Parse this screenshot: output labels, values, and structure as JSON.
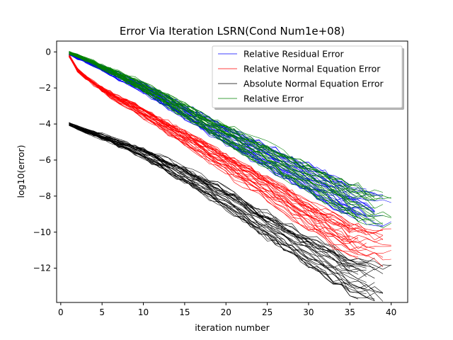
{
  "chart_data": {
    "type": "line",
    "title": "Error Via Iteration LSRN(Cond Num1e+08)",
    "xlabel": "iteration number",
    "ylabel": "log10(error)",
    "xlim": [
      -0.5,
      42
    ],
    "ylim": [
      -13.9,
      0.6
    ],
    "xticks": [
      0,
      5,
      10,
      15,
      20,
      25,
      30,
      35,
      40
    ],
    "yticks": [
      0,
      -2,
      -4,
      -6,
      -8,
      -10,
      -12
    ],
    "xtick_labels": [
      "0",
      "5",
      "10",
      "15",
      "20",
      "25",
      "30",
      "35",
      "40"
    ],
    "ytick_labels": [
      "0",
      "−2",
      "−4",
      "−6",
      "−8",
      "−10",
      "−12"
    ],
    "grid": false,
    "legend_position": "top-right",
    "runs_per_series": 30,
    "series": [
      {
        "name": "Relative Residual Error",
        "color": "#0000ff",
        "x": [
          1,
          2,
          5,
          10,
          15,
          20,
          25,
          30,
          35,
          38
        ],
        "values": [
          -0.1,
          -0.3,
          -0.9,
          -2.0,
          -3.3,
          -4.6,
          -5.8,
          -7.0,
          -8.2,
          -8.7
        ]
      },
      {
        "name": "Relative Normal Equation Error",
        "color": "#ff0000",
        "x": [
          1,
          2,
          3,
          5,
          10,
          15,
          20,
          25,
          30,
          35,
          38
        ],
        "values": [
          -0.2,
          -1.0,
          -1.4,
          -2.1,
          -3.4,
          -4.8,
          -6.2,
          -7.6,
          -9.1,
          -10.4,
          -10.8
        ]
      },
      {
        "name": "Absolute Normal Equation Error",
        "color": "#000000",
        "x": [
          1,
          2,
          5,
          10,
          15,
          20,
          25,
          30,
          35,
          38
        ],
        "values": [
          -4.0,
          -4.2,
          -4.7,
          -5.6,
          -6.8,
          -8.1,
          -9.6,
          -11.0,
          -12.3,
          -12.7
        ]
      },
      {
        "name": "Relative Error",
        "color": "#008000",
        "x": [
          1,
          2,
          5,
          10,
          15,
          20,
          25,
          30,
          35,
          38
        ],
        "values": [
          -0.05,
          -0.2,
          -0.8,
          -1.9,
          -3.2,
          -4.5,
          -5.7,
          -6.9,
          -8.1,
          -8.6
        ]
      }
    ]
  }
}
